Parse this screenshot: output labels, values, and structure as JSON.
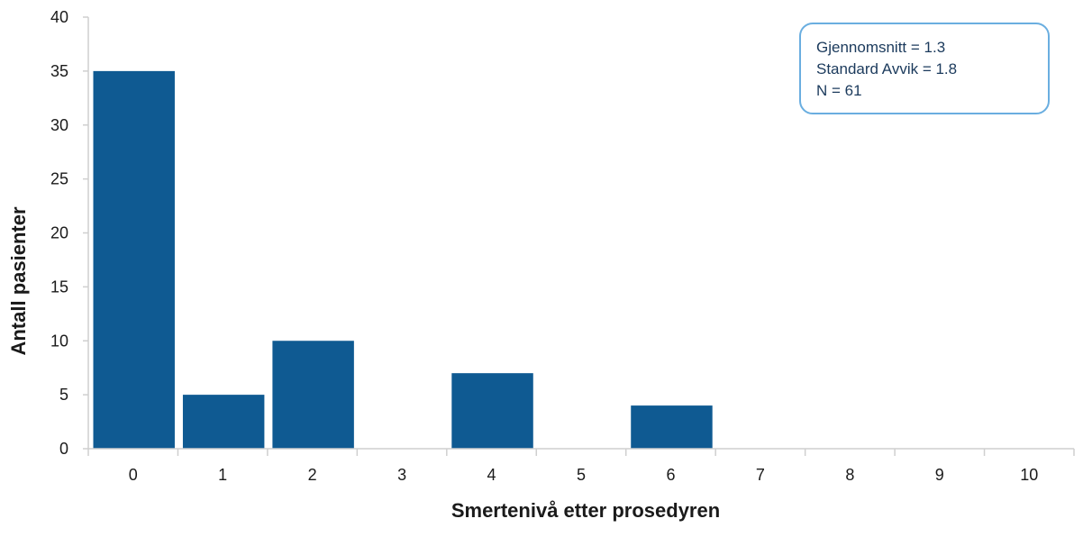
{
  "chart_data": {
    "type": "bar",
    "title": "",
    "xlabel": "Smertenivå etter prosedyren",
    "ylabel": "Antall pasienter",
    "categories": [
      "0",
      "1",
      "2",
      "3",
      "4",
      "5",
      "6",
      "7",
      "8",
      "9",
      "10"
    ],
    "values": [
      35,
      5,
      10,
      0,
      7,
      0,
      4,
      0,
      0,
      0,
      0
    ],
    "ylim": [
      0,
      40
    ],
    "yticks": [
      0,
      5,
      10,
      15,
      20,
      25,
      30,
      35,
      40
    ],
    "grid": false,
    "legend": "none",
    "bar_color": "#0f5a92",
    "annotation": {
      "placement": "top-right",
      "border_color": "#6aaee0",
      "lines": [
        "Gjennomsnitt = 1.3",
        "Standard Avvik = 1.8",
        "N = 61"
      ]
    }
  }
}
